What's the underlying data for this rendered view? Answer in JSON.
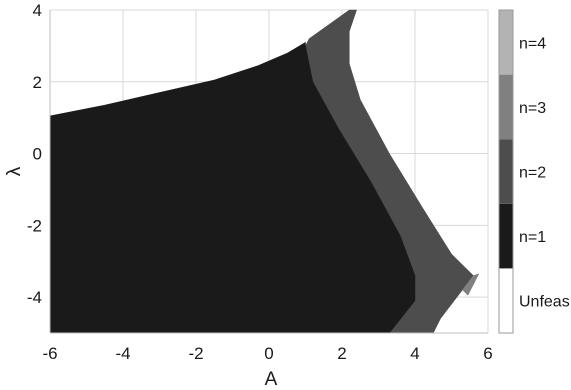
{
  "chart_data": {
    "type": "heatmap",
    "title": "",
    "xlabel": "A",
    "ylabel": "λ",
    "xlim": [
      -6,
      6
    ],
    "ylim": [
      -5,
      4
    ],
    "xticks": [
      -6,
      -4,
      -2,
      0,
      2,
      4,
      6
    ],
    "yticks": [
      -4,
      -2,
      0,
      2,
      4
    ],
    "grid": true,
    "colorbar": {
      "position": "right",
      "levels": [
        {
          "label": "Unfeas",
          "color": "#ffffff"
        },
        {
          "label": "n=1",
          "color": "#1a1a1a"
        },
        {
          "label": "n=2",
          "color": "#4d4d4d"
        },
        {
          "label": "n=3",
          "color": "#808080"
        },
        {
          "label": "n=4",
          "color": "#b3b3b3"
        }
      ]
    },
    "regions": [
      {
        "label": "n=2",
        "boundary": [
          [
            1.1,
            3.2
          ],
          [
            2.2,
            4.0
          ],
          [
            2.4,
            4.0
          ],
          [
            2.2,
            3.4
          ],
          [
            2.2,
            2.5
          ],
          [
            2.5,
            1.5
          ],
          [
            3.3,
            0.0
          ],
          [
            4.2,
            -1.5
          ],
          [
            5.0,
            -2.8
          ],
          [
            5.6,
            -3.4
          ],
          [
            5.3,
            -3.8
          ],
          [
            4.7,
            -4.6
          ],
          [
            4.5,
            -5.0
          ],
          [
            3.3,
            -5.0
          ],
          [
            4.0,
            -4.1
          ],
          [
            4.0,
            -3.4
          ],
          [
            3.6,
            -2.3
          ],
          [
            2.8,
            -0.8
          ],
          [
            1.9,
            0.7
          ],
          [
            1.2,
            2.0
          ],
          [
            1.0,
            3.0
          ]
        ]
      },
      {
        "label": "n=3",
        "boundary": [
          [
            5.6,
            -3.4
          ],
          [
            5.75,
            -3.35
          ],
          [
            5.45,
            -3.95
          ],
          [
            5.3,
            -3.8
          ]
        ]
      },
      {
        "label": "n=1",
        "boundary": [
          [
            -6.0,
            1.05
          ],
          [
            -4.5,
            1.35
          ],
          [
            -3.0,
            1.7
          ],
          [
            -1.5,
            2.05
          ],
          [
            -0.3,
            2.45
          ],
          [
            0.5,
            2.8
          ],
          [
            1.0,
            3.1
          ],
          [
            1.0,
            3.0
          ],
          [
            1.2,
            2.0
          ],
          [
            1.9,
            0.7
          ],
          [
            2.8,
            -0.8
          ],
          [
            3.6,
            -2.3
          ],
          [
            4.0,
            -3.4
          ],
          [
            4.0,
            -4.1
          ],
          [
            3.3,
            -5.0
          ],
          [
            -6.0,
            -5.0
          ]
        ]
      }
    ]
  }
}
